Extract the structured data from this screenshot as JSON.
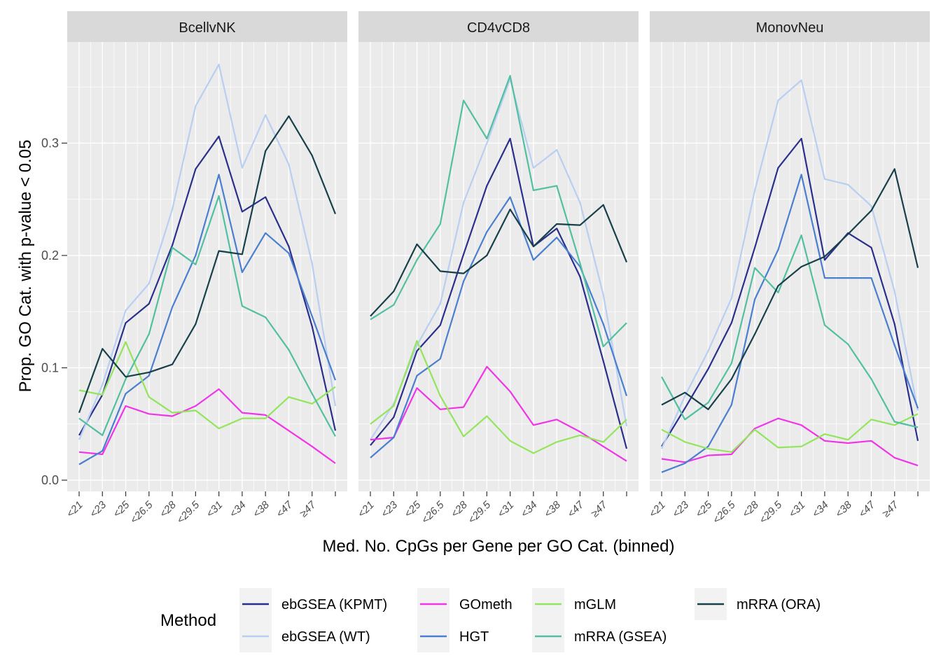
{
  "chart_data": {
    "type": "line",
    "ylabel": "Prop. GO Cat. with p-value < 0.05",
    "xlabel": "Med. No. CpGs per Gene per GO Cat. (binned)",
    "ylim": [
      -0.01,
      0.39
    ],
    "yticks": [
      0.0,
      0.1,
      0.2,
      0.3
    ],
    "ytick_labels": [
      "0.0",
      "0.1",
      "0.2",
      "0.3"
    ],
    "categories": [
      "<21",
      "<23",
      "<25",
      "<26.5",
      "<28",
      "<29.5",
      "<31",
      "<34",
      "<38",
      "<47",
      "≥47",
      ""
    ],
    "grid": true,
    "legend": {
      "title": "Method",
      "position": "bottom",
      "columns": [
        [
          "ebGSEA (KPMT)",
          "ebGSEA (WT)"
        ],
        [
          "GOmeth",
          "HGT"
        ],
        [
          "mGLM",
          "mRRA (GSEA)"
        ],
        [
          "mRRA (ORA)"
        ]
      ]
    },
    "series_colors": {
      "ebGSEA (KPMT)": "#2b2f8c",
      "ebGSEA (WT)": "#b8cff2",
      "GOmeth": "#f035e8",
      "HGT": "#4a7fd0",
      "mGLM": "#92e55c",
      "mRRA (GSEA)": "#52c0a0",
      "mRRA (ORA)": "#17404a"
    },
    "panels": [
      {
        "title": "BcellvNK",
        "series": [
          {
            "name": "ebGSEA (KPMT)",
            "values": [
              0.04,
              0.076,
              0.14,
              0.157,
              0.209,
              0.277,
              0.306,
              0.239,
              0.252,
              0.208,
              0.137,
              0.044
            ]
          },
          {
            "name": "ebGSEA (WT)",
            "values": [
              0.036,
              0.085,
              0.151,
              0.175,
              0.241,
              0.333,
              0.37,
              0.278,
              0.325,
              0.281,
              0.193,
              0.066
            ]
          },
          {
            "name": "GOmeth",
            "values": [
              0.025,
              0.023,
              0.066,
              0.059,
              0.057,
              0.066,
              0.081,
              0.06,
              0.058,
              0.044,
              0.03,
              0.015
            ]
          },
          {
            "name": "HGT",
            "values": [
              0.014,
              0.026,
              0.077,
              0.093,
              0.154,
              0.2,
              0.272,
              0.185,
              0.22,
              0.202,
              0.146,
              0.089
            ]
          },
          {
            "name": "mGLM",
            "values": [
              0.08,
              0.076,
              0.123,
              0.074,
              0.06,
              0.062,
              0.046,
              0.055,
              0.055,
              0.074,
              0.068,
              0.083
            ]
          },
          {
            "name": "mRRA (GSEA)",
            "values": [
              0.055,
              0.04,
              0.09,
              0.13,
              0.207,
              0.192,
              0.253,
              0.155,
              0.145,
              0.116,
              0.077,
              0.039
            ]
          },
          {
            "name": "mRRA (ORA)",
            "values": [
              0.06,
              0.117,
              0.092,
              0.096,
              0.103,
              0.139,
              0.204,
              0.201,
              0.293,
              0.324,
              0.289,
              0.237
            ]
          }
        ]
      },
      {
        "title": "CD4vCD8",
        "series": [
          {
            "name": "ebGSEA (KPMT)",
            "values": [
              0.031,
              0.056,
              0.115,
              0.138,
              0.201,
              0.262,
              0.304,
              0.208,
              0.224,
              0.181,
              0.106,
              0.028
            ]
          },
          {
            "name": "ebGSEA (WT)",
            "values": [
              0.036,
              0.068,
              0.12,
              0.157,
              0.247,
              0.3,
              0.357,
              0.278,
              0.294,
              0.247,
              0.165,
              0.048
            ]
          },
          {
            "name": "GOmeth",
            "values": [
              0.036,
              0.038,
              0.082,
              0.063,
              0.065,
              0.101,
              0.079,
              0.049,
              0.054,
              0.043,
              0.03,
              0.017
            ]
          },
          {
            "name": "HGT",
            "values": [
              0.02,
              0.038,
              0.093,
              0.108,
              0.177,
              0.221,
              0.252,
              0.196,
              0.216,
              0.19,
              0.139,
              0.075
            ]
          },
          {
            "name": "mGLM",
            "values": [
              0.05,
              0.066,
              0.124,
              0.075,
              0.039,
              0.057,
              0.035,
              0.024,
              0.034,
              0.04,
              0.034,
              0.054
            ]
          },
          {
            "name": "mRRA (GSEA)",
            "values": [
              0.143,
              0.156,
              0.196,
              0.228,
              0.338,
              0.304,
              0.36,
              0.258,
              0.262,
              0.193,
              0.119,
              0.14
            ]
          },
          {
            "name": "mRRA (ORA)",
            "values": [
              0.146,
              0.168,
              0.21,
              0.186,
              0.184,
              0.2,
              0.241,
              0.208,
              0.228,
              0.227,
              0.245,
              0.194
            ]
          }
        ]
      },
      {
        "title": "MonovNeu",
        "series": [
          {
            "name": "ebGSEA (KPMT)",
            "values": [
              0.03,
              0.064,
              0.099,
              0.14,
              0.207,
              0.278,
              0.304,
              0.196,
              0.22,
              0.207,
              0.139,
              0.035
            ]
          },
          {
            "name": "ebGSEA (WT)",
            "values": [
              0.028,
              0.075,
              0.115,
              0.162,
              0.258,
              0.338,
              0.356,
              0.268,
              0.263,
              0.244,
              0.168,
              0.062
            ]
          },
          {
            "name": "GOmeth",
            "values": [
              0.019,
              0.016,
              0.022,
              0.023,
              0.046,
              0.055,
              0.049,
              0.035,
              0.033,
              0.035,
              0.02,
              0.013
            ]
          },
          {
            "name": "HGT",
            "values": [
              0.007,
              0.015,
              0.03,
              0.067,
              0.161,
              0.205,
              0.272,
              0.18,
              0.18,
              0.18,
              0.12,
              0.064
            ]
          },
          {
            "name": "mGLM",
            "values": [
              0.045,
              0.034,
              0.028,
              0.025,
              0.045,
              0.029,
              0.03,
              0.041,
              0.036,
              0.054,
              0.049,
              0.059
            ]
          },
          {
            "name": "mRRA (GSEA)",
            "values": [
              0.092,
              0.054,
              0.069,
              0.104,
              0.189,
              0.167,
              0.218,
              0.138,
              0.121,
              0.09,
              0.052,
              0.047
            ]
          },
          {
            "name": "mRRA (ORA)",
            "values": [
              0.067,
              0.078,
              0.063,
              0.09,
              0.13,
              0.173,
              0.19,
              0.199,
              0.219,
              0.24,
              0.277,
              0.189
            ]
          }
        ]
      }
    ]
  }
}
